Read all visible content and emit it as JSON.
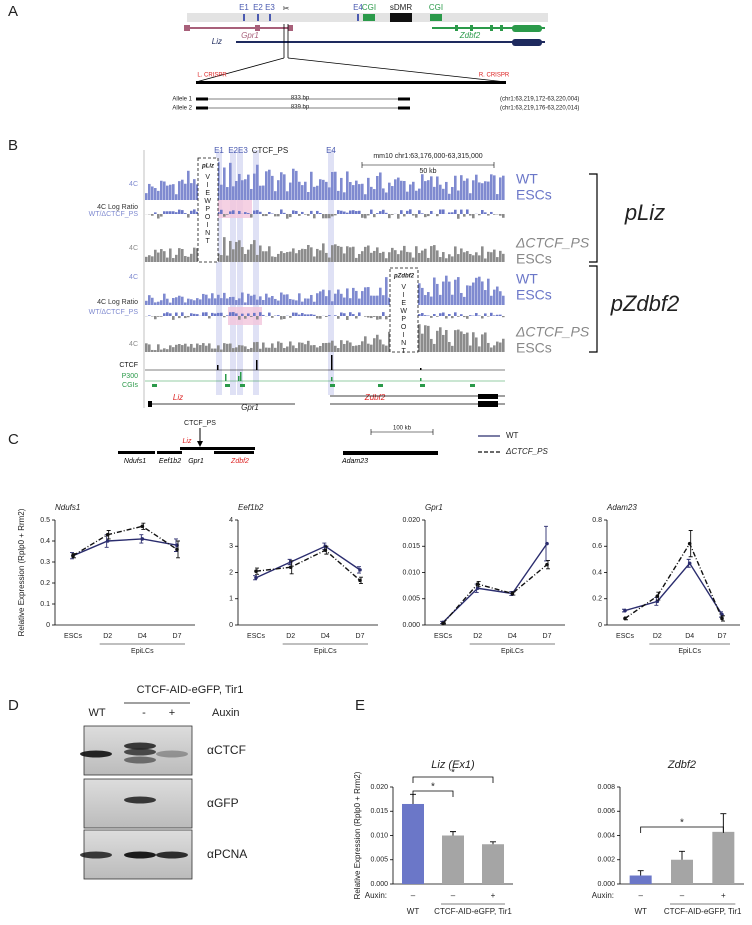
{
  "panel_labels": [
    "A",
    "B",
    "C",
    "D",
    "E"
  ],
  "panel_a": {
    "exons": [
      "E1",
      "E2",
      "E3",
      "E4"
    ],
    "cgi": [
      "CGI",
      "CGI"
    ],
    "sdmr": "sDMR",
    "genes": [
      "Gpr1",
      "Zdbf2",
      "Liz"
    ],
    "crispr": [
      "L. CRISPR",
      "R. CRISPR"
    ],
    "alleles": [
      {
        "name": "Allele 1",
        "size": "833 bp",
        "coords": "(chr1:63,219,172-63,220,004)"
      },
      {
        "name": "Allele 2",
        "size": "839 bp",
        "coords": "(chr1:63,219,176-63,220,014)"
      }
    ]
  },
  "panel_b": {
    "exons": [
      "E1",
      "E2E3",
      "CTCF_PS",
      "E4"
    ],
    "region": "mm10 chr1:63,176,000-63,315,000",
    "scale": "50 kb",
    "tracks": [
      "4C",
      "4C Log Ratio",
      "WT/ΔCTCF_PS",
      "4C",
      "4C",
      "4C Log Ratio",
      "WT/ΔCTCF_PS",
      "4C",
      "CTCF",
      "P300",
      "CGIs"
    ],
    "viewpoints": [
      {
        "name": "pLiz",
        "text": "VIEWPOINT"
      },
      {
        "name": "pZdbf2",
        "text": "VIEWPOINT"
      }
    ],
    "conditions": [
      {
        "genotype": "WT",
        "cell": "ESCs"
      },
      {
        "genotype": "ΔCTCF_PS",
        "cell": "ESCs"
      },
      {
        "genotype": "WT",
        "cell": "ESCs"
      },
      {
        "genotype": "ΔCTCF_PS",
        "cell": "ESCs"
      }
    ],
    "groups": [
      "pLiz",
      "pZdbf2"
    ],
    "genes": [
      "Liz",
      "Gpr1",
      "Zdbf2"
    ]
  },
  "panel_c_map": {
    "ctcf_ps": "CTCF_PS",
    "liz": "Liz",
    "genes": [
      "Ndufs1",
      "Eef1b2",
      "Gpr1",
      "Zdbf2",
      "Adam23"
    ],
    "scale": "100 kb"
  },
  "panel_d": {
    "header": "CTCF-AID-eGFP, Tir1",
    "lanes": [
      "WT",
      "-",
      "+"
    ],
    "treatment": "Auxin",
    "antibodies": [
      "αCTCF",
      "αGFP",
      "αPCNA"
    ]
  },
  "chart_data": [
    {
      "type": "line",
      "title": "Ndufs1",
      "y_label": "Relative Expression (Rplp0 + Rrm2)",
      "categories": [
        "ESCs",
        "D2",
        "D4",
        "D7"
      ],
      "x_group": "EpiLCs",
      "ylim": [
        0,
        0.5
      ],
      "yticks": [
        0,
        0.1,
        0.2,
        0.3,
        0.4,
        0.5
      ],
      "series": [
        {
          "name": "WT",
          "color": "#2b2d6e",
          "values": [
            0.33,
            0.4,
            0.41,
            0.38
          ],
          "errors": [
            0.015,
            0.03,
            0.02,
            0.03
          ]
        },
        {
          "name": "ΔCTCF_PS",
          "color": "#111111",
          "values": [
            0.33,
            0.43,
            0.47,
            0.36
          ],
          "errors": [
            0.01,
            0.02,
            0.015,
            0.04
          ]
        }
      ]
    },
    {
      "type": "line",
      "title": "Eef1b2",
      "categories": [
        "ESCs",
        "D2",
        "D4",
        "D7"
      ],
      "x_group": "EpiLCs",
      "ylim": [
        0,
        4
      ],
      "yticks": [
        0,
        1,
        2,
        3,
        4
      ],
      "series": [
        {
          "color": "#2b2d6e",
          "values": [
            1.8,
            2.4,
            3.0,
            2.1
          ],
          "errors": [
            0.08,
            0.1,
            0.12,
            0.12
          ]
        },
        {
          "color": "#111111",
          "values": [
            2.05,
            2.2,
            2.85,
            1.7
          ],
          "errors": [
            0.12,
            0.25,
            0.15,
            0.12
          ]
        }
      ]
    },
    {
      "type": "line",
      "title": "Gpr1",
      "categories": [
        "ESCs",
        "D2",
        "D4",
        "D7"
      ],
      "x_group": "EpiLCs",
      "ylim": [
        0,
        0.02
      ],
      "yticks": [
        {
          "value": 0,
          "label": "0.000"
        },
        {
          "value": 0.005,
          "label": "0.005"
        },
        {
          "value": 0.01,
          "label": "0.010"
        },
        {
          "value": 0.015,
          "label": "0.015"
        },
        {
          "value": 0.02,
          "label": "0.020"
        }
      ],
      "series": [
        {
          "color": "#2b2d6e",
          "values": [
            0.0005,
            0.007,
            0.006,
            0.0155
          ],
          "errors": [
            0.0002,
            0.0008,
            0.0004,
            0.0033
          ]
        },
        {
          "color": "#111111",
          "values": [
            0.0003,
            0.0078,
            0.006,
            0.0115
          ],
          "errors": [
            0.0001,
            0.0005,
            0.0003,
            0.0008
          ]
        }
      ]
    },
    {
      "type": "line",
      "title": "Adam23",
      "categories": [
        "ESCs",
        "D2",
        "D4",
        "D7"
      ],
      "x_group": "EpiLCs",
      "ylim": [
        0,
        0.8
      ],
      "yticks": [
        0,
        0.2,
        0.4,
        0.6,
        0.8
      ],
      "series": [
        {
          "color": "#2b2d6e",
          "values": [
            0.11,
            0.18,
            0.47,
            0.08
          ],
          "errors": [
            0.01,
            0.03,
            0.03,
            0.02
          ]
        },
        {
          "color": "#111111",
          "values": [
            0.05,
            0.22,
            0.62,
            0.05
          ],
          "errors": [
            0.01,
            0.03,
            0.1,
            0.02
          ]
        }
      ]
    },
    {
      "type": "bar",
      "title": "Liz (Ex1)",
      "y_label": "Relative Expression (Rplp0 + Rrm2)",
      "categories": [
        "–",
        "–",
        "+"
      ],
      "x_axis_label": "Auxin:",
      "groups": [
        "WT",
        "CTCF-AID-eGFP, Tir1"
      ],
      "ylim": [
        0,
        0.02
      ],
      "yticks": [
        {
          "value": 0,
          "label": "0.000"
        },
        {
          "value": 0.005,
          "label": "0.005"
        },
        {
          "value": 0.01,
          "label": "0.010"
        },
        {
          "value": 0.015,
          "label": "0.015"
        },
        {
          "value": 0.02,
          "label": "0.020"
        }
      ],
      "values": [
        0.0165,
        0.01,
        0.0082
      ],
      "errors": [
        0.002,
        0.0008,
        0.0005
      ],
      "colors": [
        "#6b77c8",
        "#a5a5a5",
        "#a5a5a5"
      ],
      "annotations": [
        "*",
        "*"
      ]
    },
    {
      "type": "bar",
      "title": "Zdbf2",
      "categories": [
        "–",
        "–",
        "+"
      ],
      "x_axis_label": "Auxin:",
      "groups": [
        "WT",
        "CTCF-AID-eGFP, Tir1"
      ],
      "ylim": [
        0,
        0.008
      ],
      "yticks": [
        {
          "value": 0,
          "label": "0.000"
        },
        {
          "value": 0.002,
          "label": "0.002"
        },
        {
          "value": 0.004,
          "label": "0.004"
        },
        {
          "value": 0.006,
          "label": "0.006"
        },
        {
          "value": 0.008,
          "label": "0.008"
        }
      ],
      "values": [
        0.0007,
        0.002,
        0.0043
      ],
      "errors": [
        0.0004,
        0.0007,
        0.0015
      ],
      "colors": [
        "#6b77c8",
        "#a5a5a5",
        "#a5a5a5"
      ],
      "annotations": [
        "*"
      ]
    }
  ]
}
